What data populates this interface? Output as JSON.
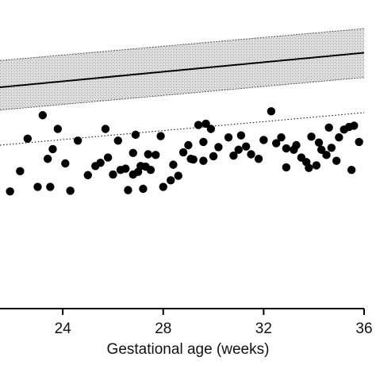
{
  "chart_data": {
    "type": "scatter",
    "title": "",
    "xlabel": "Gestational age (weeks)",
    "ylabel": "",
    "xlim": [
      21.5,
      36
    ],
    "ylim": [
      0,
      474
    ],
    "x_ticks": [
      24,
      28,
      32,
      36
    ],
    "x_tick_labels": [
      "24",
      "28",
      "32",
      "36"
    ],
    "grid": false,
    "legend": "none",
    "reference_band": {
      "mean_line": {
        "x": [
          21.5,
          36
        ],
        "y": [
          340,
          393
        ]
      },
      "upper_bound": {
        "x": [
          21.5,
          36
        ],
        "y": [
          381,
          430
        ]
      },
      "lower_bound": {
        "x": [
          21.5,
          36
        ],
        "y": [
          305,
          355
        ]
      },
      "fill": "stippled grey"
    },
    "lower_limit_line": {
      "x": [
        21.5,
        36
      ],
      "y": [
        251,
        301
      ],
      "style": "dotted"
    },
    "series": [
      {
        "marker": "filled-circle",
        "color": "#000000",
        "points": [
          {
            "x": 21.9,
            "y": 180
          },
          {
            "x": 22.6,
            "y": 261
          },
          {
            "x": 23.0,
            "y": 187
          },
          {
            "x": 23.2,
            "y": 297
          },
          {
            "x": 23.4,
            "y": 230
          },
          {
            "x": 23.5,
            "y": 187
          },
          {
            "x": 23.8,
            "y": 276
          },
          {
            "x": 24.1,
            "y": 223
          },
          {
            "x": 24.6,
            "y": 258
          },
          {
            "x": 25.3,
            "y": 219
          },
          {
            "x": 25.5,
            "y": 224
          },
          {
            "x": 25.7,
            "y": 276
          },
          {
            "x": 25.8,
            "y": 232
          },
          {
            "x": 26.0,
            "y": 206
          },
          {
            "x": 26.3,
            "y": 213
          },
          {
            "x": 26.5,
            "y": 215
          },
          {
            "x": 26.6,
            "y": 182
          },
          {
            "x": 26.8,
            "y": 206
          },
          {
            "x": 26.9,
            "y": 267
          },
          {
            "x": 27.0,
            "y": 210
          },
          {
            "x": 27.1,
            "y": 219
          },
          {
            "x": 27.2,
            "y": 184
          },
          {
            "x": 27.3,
            "y": 218
          },
          {
            "x": 27.4,
            "y": 237
          },
          {
            "x": 27.5,
            "y": 213
          },
          {
            "x": 27.9,
            "y": 265
          },
          {
            "x": 28.0,
            "y": 187
          },
          {
            "x": 28.3,
            "y": 197
          },
          {
            "x": 28.6,
            "y": 204
          },
          {
            "x": 28.8,
            "y": 240
          },
          {
            "x": 29.0,
            "y": 251
          },
          {
            "x": 29.1,
            "y": 230
          },
          {
            "x": 29.2,
            "y": 229
          },
          {
            "x": 29.4,
            "y": 282
          },
          {
            "x": 29.6,
            "y": 227
          },
          {
            "x": 29.7,
            "y": 284
          },
          {
            "x": 29.9,
            "y": 276
          },
          {
            "x": 30.0,
            "y": 234
          },
          {
            "x": 31.0,
            "y": 244
          },
          {
            "x": 30.8,
            "y": 235
          },
          {
            "x": 31.3,
            "y": 249
          },
          {
            "x": 31.5,
            "y": 237
          },
          {
            "x": 31.8,
            "y": 230
          },
          {
            "x": 32.3,
            "y": 303
          },
          {
            "x": 32.5,
            "y": 254
          },
          {
            "x": 32.7,
            "y": 263
          },
          {
            "x": 32.9,
            "y": 246
          },
          {
            "x": 33.2,
            "y": 244
          },
          {
            "x": 33.5,
            "y": 232
          },
          {
            "x": 33.7,
            "y": 225
          },
          {
            "x": 33.8,
            "y": 216
          },
          {
            "x": 34.1,
            "y": 220
          },
          {
            "x": 34.3,
            "y": 244
          },
          {
            "x": 34.5,
            "y": 236
          },
          {
            "x": 34.7,
            "y": 247
          },
          {
            "x": 35.0,
            "y": 263
          },
          {
            "x": 35.2,
            "y": 275
          },
          {
            "x": 35.4,
            "y": 279
          },
          {
            "x": 35.6,
            "y": 281
          },
          {
            "x": 35.8,
            "y": 256
          },
          {
            "x": 34.6,
            "y": 278
          },
          {
            "x": 32.0,
            "y": 259
          },
          {
            "x": 31.1,
            "y": 266
          },
          {
            "x": 30.6,
            "y": 263
          },
          {
            "x": 30.2,
            "y": 248
          },
          {
            "x": 29.6,
            "y": 256
          },
          {
            "x": 28.4,
            "y": 221
          },
          {
            "x": 27.7,
            "y": 236
          },
          {
            "x": 26.8,
            "y": 239
          },
          {
            "x": 26.2,
            "y": 258
          },
          {
            "x": 25.0,
            "y": 205
          },
          {
            "x": 24.3,
            "y": 181
          },
          {
            "x": 23.6,
            "y": 245
          },
          {
            "x": 22.3,
            "y": 211
          },
          {
            "x": 32.9,
            "y": 217
          },
          {
            "x": 33.9,
            "y": 264
          },
          {
            "x": 34.9,
            "y": 227
          },
          {
            "x": 35.5,
            "y": 213
          },
          {
            "x": 33.3,
            "y": 251
          },
          {
            "x": 34.2,
            "y": 255
          }
        ]
      }
    ]
  }
}
